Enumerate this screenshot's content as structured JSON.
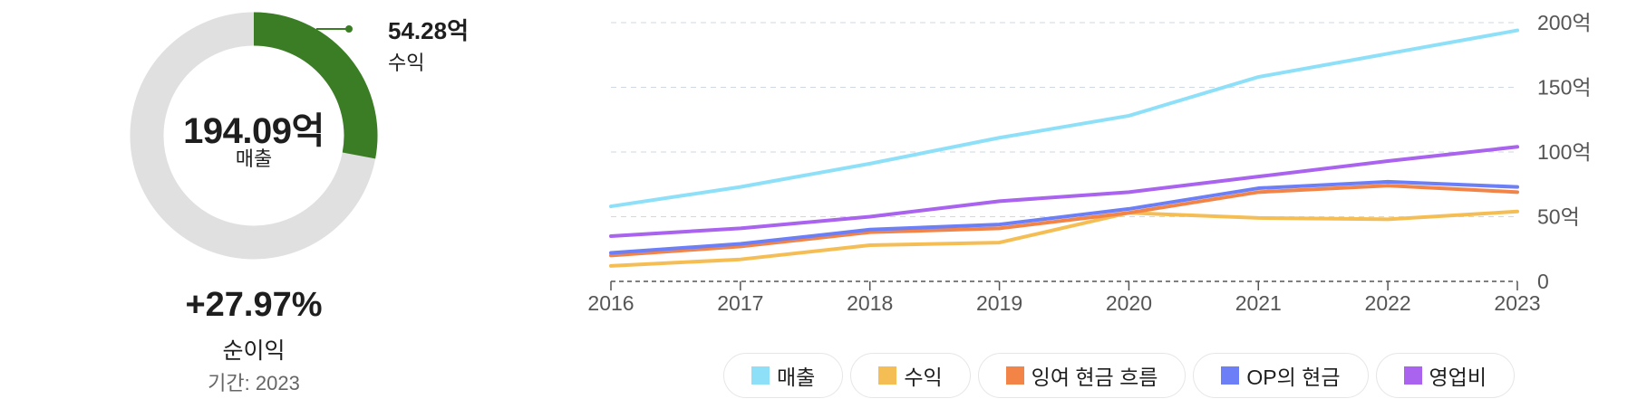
{
  "donut": {
    "center_value": "194.09억",
    "center_label": "매출",
    "callout_value": "54.28억",
    "callout_label": "수익",
    "fraction": 0.2797,
    "segment_color": "#3a7d24",
    "track_color": "#e0e0e0"
  },
  "summary": {
    "growth_value": "+27.97%",
    "growth_label": "순이익",
    "period": "기간: 2023"
  },
  "chart_data": {
    "type": "line",
    "x": [
      "2016",
      "2017",
      "2018",
      "2019",
      "2020",
      "2021",
      "2022",
      "2023"
    ],
    "yticks": [
      "0",
      "50억",
      "100억",
      "150억",
      "200억"
    ],
    "ylim": [
      0,
      200
    ],
    "grid": true,
    "legend_position": "bottom",
    "series": [
      {
        "name": "매출",
        "color": "#8ee0f9",
        "values": [
          58,
          73,
          91,
          111,
          128,
          158,
          176,
          194
        ]
      },
      {
        "name": "수익",
        "color": "#f5be55",
        "values": [
          12,
          17,
          28,
          30,
          53,
          49,
          48,
          54
        ]
      },
      {
        "name": "잉여 현금 흐름",
        "color": "#f28448",
        "values": [
          20,
          27,
          38,
          41,
          53,
          69,
          74,
          69
        ]
      },
      {
        "name": "OP의 현금",
        "color": "#6c7ff7",
        "values": [
          22,
          29,
          40,
          44,
          56,
          72,
          77,
          73
        ]
      },
      {
        "name": "영업비",
        "color": "#a963ee",
        "values": [
          35,
          41,
          50,
          62,
          69,
          81,
          93,
          104
        ]
      }
    ]
  }
}
